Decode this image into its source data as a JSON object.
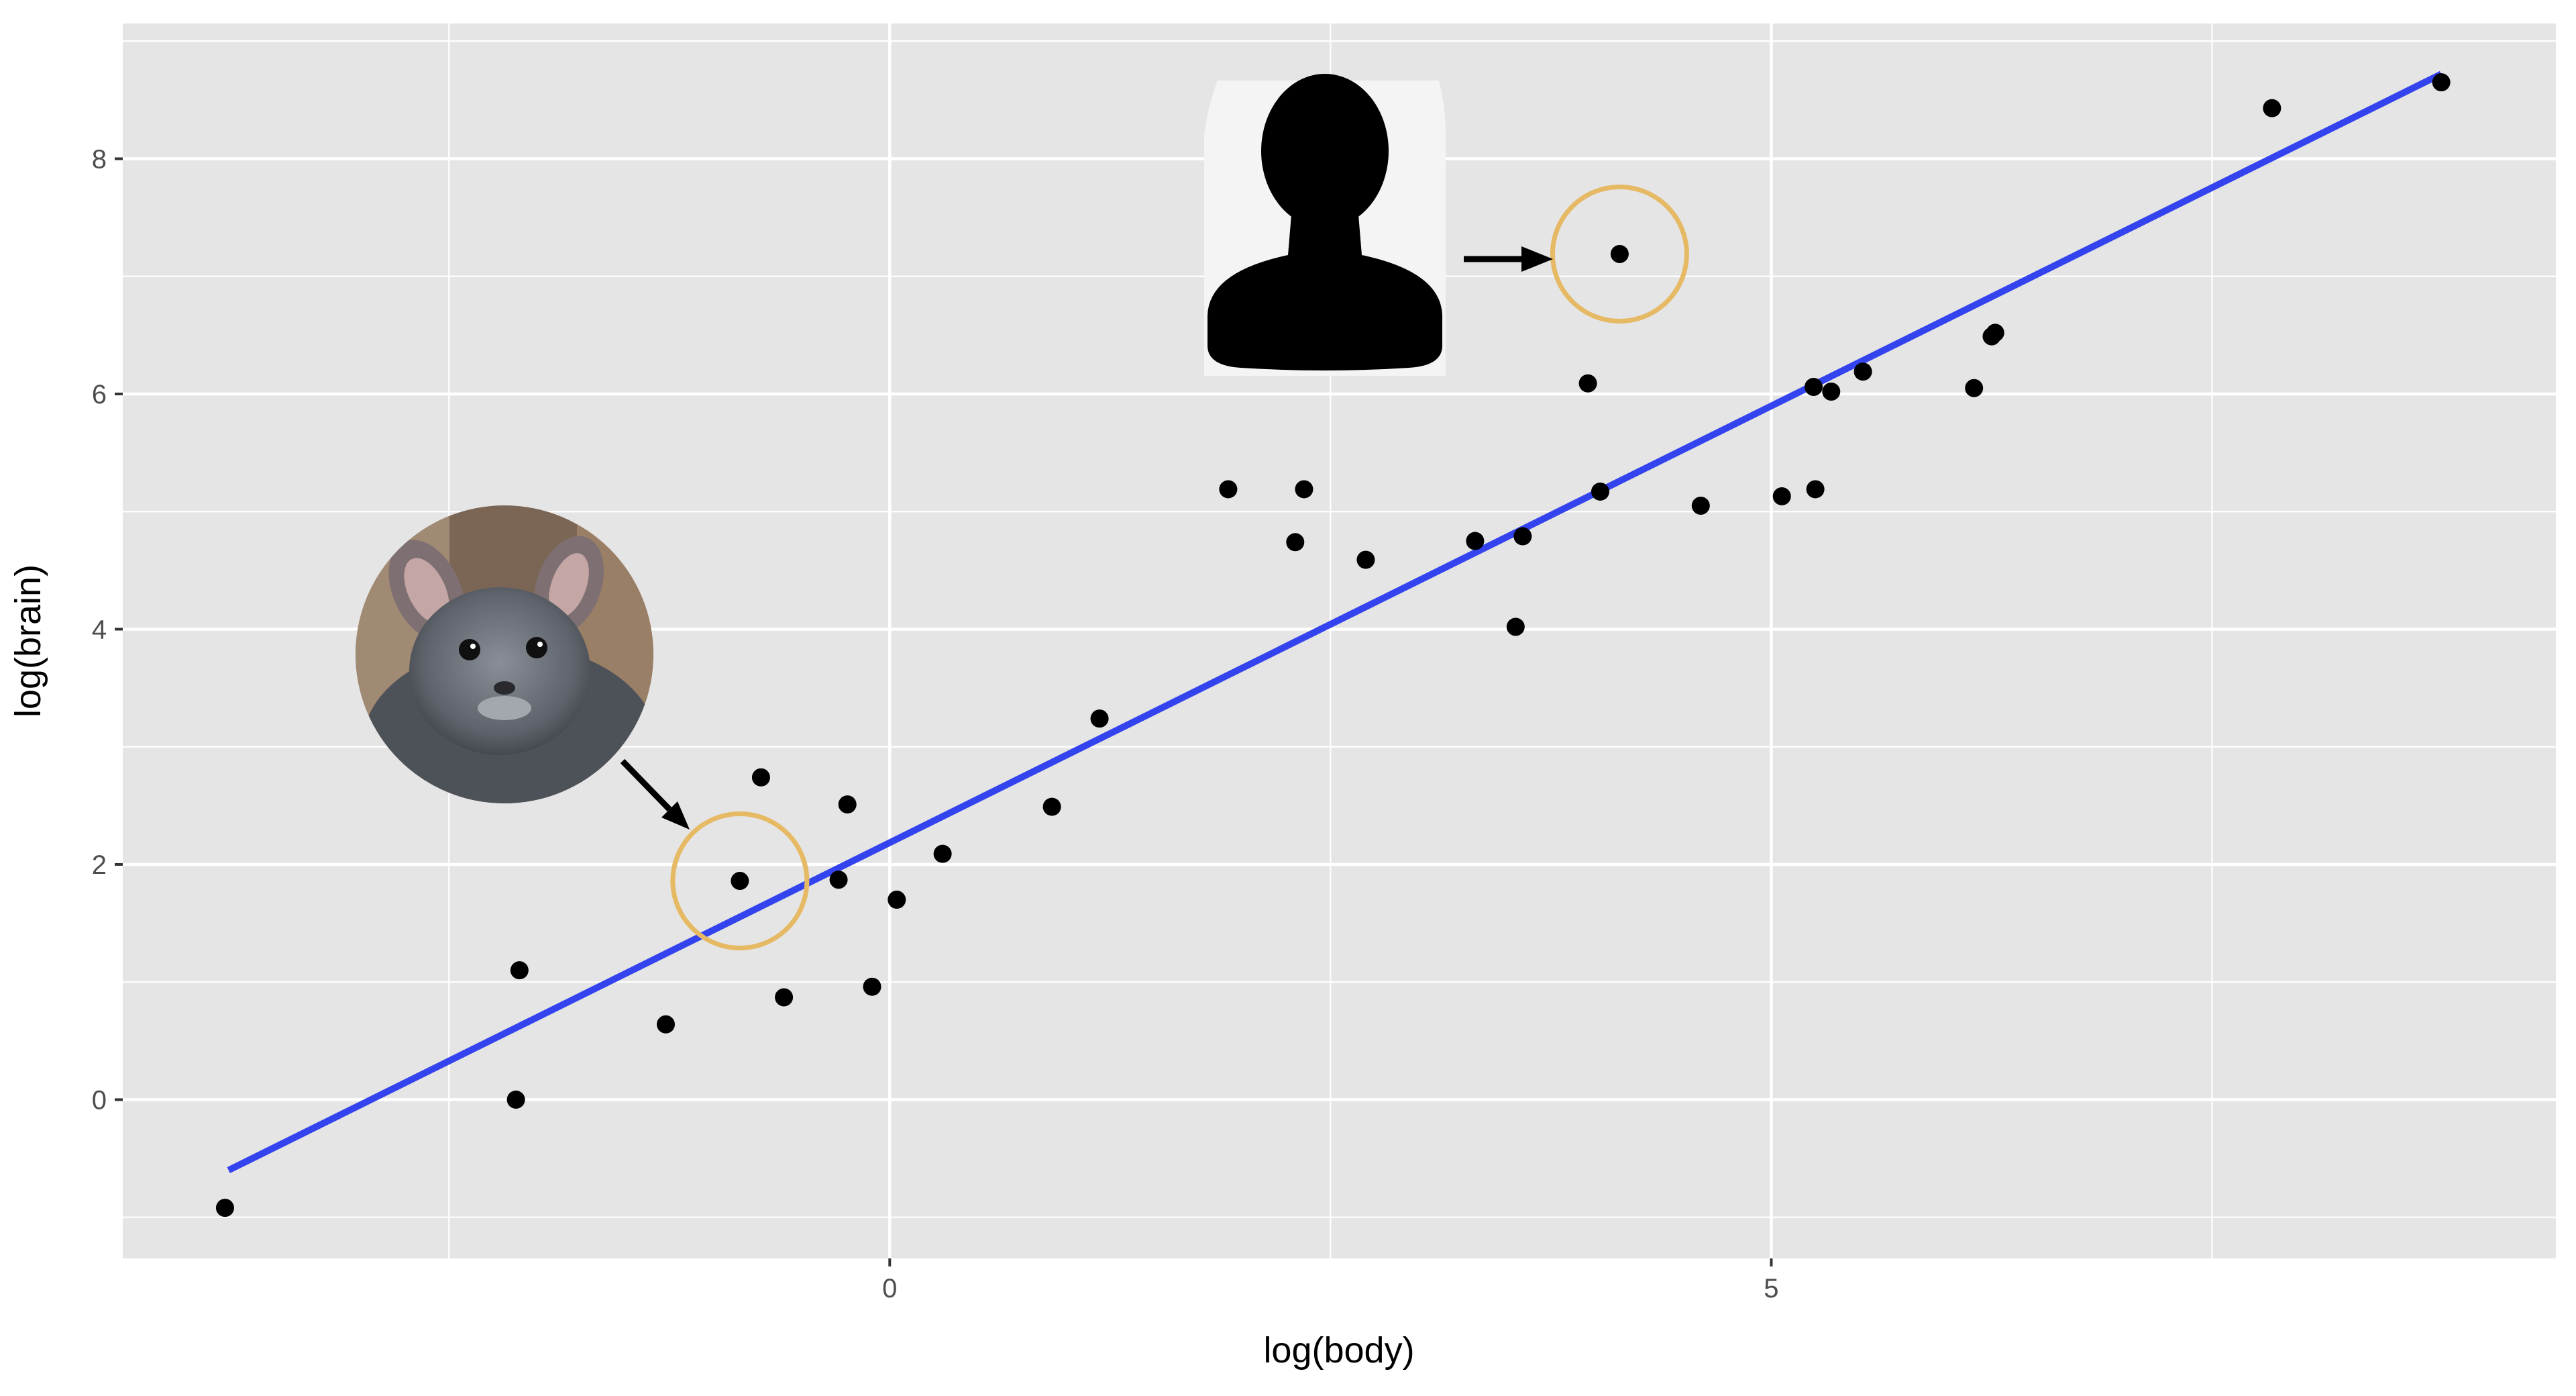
{
  "chart_data": {
    "type": "scatter",
    "title": "",
    "xlabel": "log(body)",
    "ylabel": "log(brain)",
    "xlim": [
      -4.35,
      9.45
    ],
    "ylim": [
      -1.35,
      9.15
    ],
    "x_major_ticks": [
      0,
      5
    ],
    "x_minor_gridlines": [
      -2.5,
      2.5,
      7.5
    ],
    "y_major_ticks": [
      0,
      2,
      4,
      6,
      8
    ],
    "y_minor_gridlines": [
      -1,
      1,
      3,
      5,
      7,
      9
    ],
    "grid": true,
    "colors": {
      "panel_background": "#E5E5E5",
      "grid": "#FFFFFF",
      "points": "#000000",
      "fit_line": "#3344EE",
      "highlight_circle": "#E6B964",
      "arrow": "#000000"
    },
    "points": [
      {
        "x": -3.77,
        "y": -0.92
      },
      {
        "x": -2.12,
        "y": 0.0
      },
      {
        "x": -2.1,
        "y": 1.1
      },
      {
        "x": -1.27,
        "y": 0.64
      },
      {
        "x": -0.85,
        "y": 1.86
      },
      {
        "x": -0.73,
        "y": 2.74
      },
      {
        "x": -0.6,
        "y": 0.87
      },
      {
        "x": -0.29,
        "y": 1.87
      },
      {
        "x": -0.24,
        "y": 2.51
      },
      {
        "x": -0.1,
        "y": 0.96
      },
      {
        "x": 0.04,
        "y": 1.7
      },
      {
        "x": 0.3,
        "y": 2.09
      },
      {
        "x": 0.92,
        "y": 2.49
      },
      {
        "x": 1.19,
        "y": 3.24
      },
      {
        "x": 1.92,
        "y": 5.19
      },
      {
        "x": 2.3,
        "y": 4.74
      },
      {
        "x": 2.35,
        "y": 5.19
      },
      {
        "x": 2.7,
        "y": 4.59
      },
      {
        "x": 3.32,
        "y": 4.75
      },
      {
        "x": 3.55,
        "y": 4.02
      },
      {
        "x": 3.59,
        "y": 4.79
      },
      {
        "x": 3.96,
        "y": 6.09
      },
      {
        "x": 4.03,
        "y": 5.17
      },
      {
        "x": 4.14,
        "y": 7.19
      },
      {
        "x": 4.6,
        "y": 5.05
      },
      {
        "x": 5.06,
        "y": 5.13
      },
      {
        "x": 5.24,
        "y": 6.06
      },
      {
        "x": 5.25,
        "y": 5.19
      },
      {
        "x": 5.34,
        "y": 6.02
      },
      {
        "x": 5.52,
        "y": 6.19
      },
      {
        "x": 6.15,
        "y": 6.05
      },
      {
        "x": 6.25,
        "y": 6.49
      },
      {
        "x": 6.27,
        "y": 6.52
      },
      {
        "x": 7.84,
        "y": 8.43
      },
      {
        "x": 8.8,
        "y": 8.65
      }
    ],
    "fit_line": {
      "x": [
        -3.75,
        8.8
      ],
      "y": [
        -0.6,
        8.72
      ]
    },
    "annotations": [
      {
        "type": "highlight-circle",
        "x": -0.85,
        "y": 1.86,
        "subject": "chinchilla"
      },
      {
        "type": "highlight-circle",
        "x": 4.14,
        "y": 7.19,
        "subject": "human"
      }
    ]
  }
}
